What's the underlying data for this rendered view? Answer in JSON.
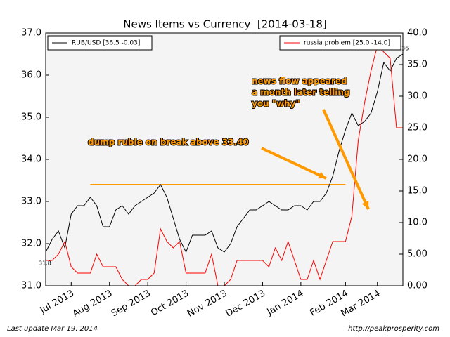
{
  "chart_data": {
    "type": "line",
    "title": "News Items vs Currency  [2014-03-18]",
    "categories": [
      null,
      null,
      null,
      null,
      "Jul 2013",
      null,
      null,
      null,
      null,
      null,
      "Aug 2013",
      null,
      null,
      null,
      null,
      null,
      "Sep 2013",
      null,
      null,
      null,
      null,
      null,
      "Oct 2013",
      null,
      null,
      null,
      null,
      null,
      "Nov 2013",
      null,
      null,
      null,
      null,
      null,
      "Dec 2013",
      null,
      null,
      null,
      null,
      null,
      "Jan 2014",
      null,
      null,
      null,
      null,
      null,
      null,
      "Feb 2014",
      null,
      null,
      null,
      null,
      "Mar 2014",
      null,
      null,
      null,
      null
    ],
    "series": [
      {
        "name": "RUB/USD [36.5 -0.03]",
        "color": "#000000",
        "axis": "y",
        "values": [
          31.8,
          32.1,
          32.3,
          31.9,
          32.7,
          32.9,
          32.9,
          33.1,
          32.9,
          32.4,
          32.4,
          32.8,
          32.9,
          32.7,
          32.9,
          33.0,
          33.1,
          33.2,
          33.4,
          33.1,
          32.6,
          32.1,
          31.8,
          32.2,
          32.2,
          32.2,
          32.3,
          31.9,
          31.8,
          32.0,
          32.4,
          32.6,
          32.8,
          32.8,
          32.9,
          33.0,
          32.9,
          32.8,
          32.8,
          32.9,
          32.9,
          32.8,
          33.0,
          33.0,
          33.2,
          33.6,
          34.2,
          34.7,
          35.1,
          34.8,
          34.9,
          35.1,
          35.6,
          36.3,
          36.1,
          36.4,
          36.5
        ]
      },
      {
        "name": "russia problem [25.0 -14.0]",
        "color": "#ff0000",
        "axis": "y2",
        "values": [
          4,
          4,
          5,
          7,
          3,
          2,
          2,
          2,
          5,
          3,
          3,
          3,
          1,
          0,
          0,
          1,
          1,
          2,
          9,
          7,
          6,
          7,
          2,
          2,
          2,
          2,
          5,
          0,
          0,
          1,
          4,
          4,
          4,
          4,
          4,
          3,
          6,
          4,
          7,
          4,
          1,
          1,
          4,
          1,
          4,
          7,
          7,
          7,
          11,
          23,
          29,
          34,
          38,
          37,
          36,
          25,
          25
        ]
      }
    ],
    "ylim": [
      31,
      37
    ],
    "yticks": [
      {
        "value": 31,
        "label": "31.0"
      },
      {
        "value": 32,
        "label": "32.0"
      },
      {
        "value": 33,
        "label": "33.0"
      },
      {
        "value": 34,
        "label": "34.0"
      },
      {
        "value": 35,
        "label": "35.0"
      },
      {
        "value": 36,
        "label": "36.0"
      },
      {
        "value": 37,
        "label": "37.0"
      }
    ],
    "y2lim": [
      0,
      40
    ],
    "y2ticks": [
      {
        "value": 0,
        "label": "0.00"
      },
      {
        "value": 5,
        "label": "5.00"
      },
      {
        "value": 10,
        "label": "10.0"
      },
      {
        "value": 15,
        "label": "15.0"
      },
      {
        "value": 20,
        "label": "20.0"
      },
      {
        "value": 25,
        "label": "25.0"
      },
      {
        "value": 30,
        "label": "30.0"
      },
      {
        "value": 35,
        "label": "35.0"
      },
      {
        "value": 40,
        "label": "40.0"
      }
    ],
    "hline": {
      "value": 33.4,
      "from": 7,
      "to": 47,
      "color": "#ff9900"
    },
    "point_labels": [
      "31.8",
      "36"
    ],
    "annotations": [
      {
        "lines": [
          "news flow appeared",
          "a month later telling",
          "you \"why\""
        ]
      },
      {
        "lines": [
          "dump ruble on break above 33.40"
        ]
      }
    ],
    "footer_left": "Last update Mar 19, 2014",
    "footer_right": "http://peakprosperity.com"
  }
}
